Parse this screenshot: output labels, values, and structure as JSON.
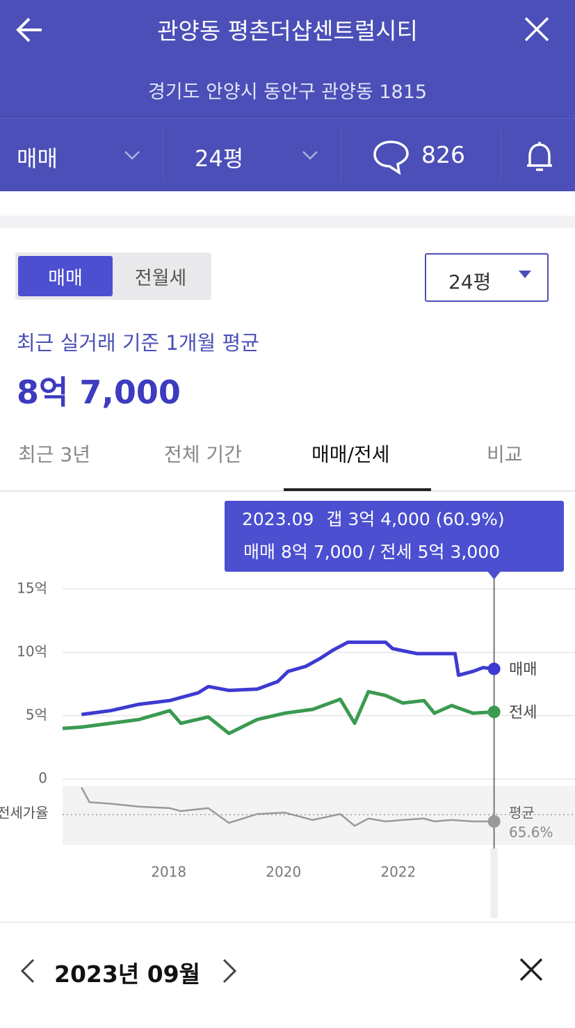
{
  "header": {
    "title": "관양동 평촌더샵센트럴시티",
    "address": "경기도 안양시 동안구 관양동 1815"
  },
  "nav": {
    "deal_type": "매매",
    "size": "24평",
    "comments": "826"
  },
  "summary": {
    "toggle": [
      "매매",
      "전월세"
    ],
    "size_select": "24평",
    "caption": "최근 실거래 기준 1개월 평균",
    "price": "8억 7,000"
  },
  "tabs": [
    "최근 3년",
    "전체 기간",
    "매매/전세",
    "비교"
  ],
  "tooltip": {
    "date": "2023.09",
    "line1": "갭 3억 4,000 (60.9%)",
    "line2": "매매 8억 7,000 / 전세 5억 3,000"
  },
  "chart_data": {
    "type": "line",
    "xlim": [
      2016.15,
      2025.08
    ],
    "xticks": [
      2018,
      2020,
      2022
    ],
    "ylim": [
      0,
      15
    ],
    "yticks": [
      {
        "value": 15,
        "label": "15억"
      },
      {
        "value": 10,
        "label": "10억"
      },
      {
        "value": 5,
        "label": "5억"
      },
      0
    ],
    "grid": true,
    "cursor_x": 2023.67,
    "series": [
      {
        "name": "매매",
        "color": "#3d3bd1",
        "x": [
          2016.48,
          2016.99,
          2017.48,
          2018.02,
          2018.51,
          2018.69,
          2019.05,
          2019.54,
          2019.9,
          2020.08,
          2020.39,
          2020.63,
          2020.87,
          2021.12,
          2021.78,
          2021.9,
          2022.33,
          2022.99,
          2023.05,
          2023.3,
          2023.48,
          2023.67
        ],
        "values": [
          5.1,
          5.4,
          5.9,
          6.2,
          6.8,
          7.3,
          7.0,
          7.1,
          7.7,
          8.5,
          8.9,
          9.5,
          10.2,
          10.8,
          10.8,
          10.3,
          9.9,
          9.9,
          8.2,
          8.5,
          8.8,
          8.7
        ]
      },
      {
        "name": "전세",
        "color": "#3a9a50",
        "x": [
          2016.15,
          2016.48,
          2016.99,
          2017.48,
          2018.02,
          2018.21,
          2018.69,
          2019.05,
          2019.54,
          2020.02,
          2020.51,
          2020.99,
          2021.24,
          2021.48,
          2021.78,
          2022.08,
          2022.45,
          2022.63,
          2022.93,
          2023.3,
          2023.67
        ],
        "values": [
          4.0,
          4.1,
          4.4,
          4.7,
          5.4,
          4.4,
          4.9,
          3.6,
          4.7,
          5.2,
          5.5,
          6.3,
          4.4,
          6.9,
          6.6,
          6.0,
          6.2,
          5.2,
          5.8,
          5.2,
          5.3
        ]
      }
    ],
    "ratio": {
      "name": "전세가율",
      "color": "#999999",
      "ylim": [
        45,
        85
      ],
      "average_label": "평균",
      "average": {
        "value": 65.6,
        "label": "65.6%"
      },
      "x": [
        2016.48,
        2016.62,
        2016.99,
        2017.48,
        2018.02,
        2018.21,
        2018.69,
        2019.05,
        2019.54,
        2020.02,
        2020.51,
        2020.99,
        2021.24,
        2021.48,
        2021.78,
        2022.08,
        2022.45,
        2022.63,
        2022.93,
        2023.3,
        2023.67
      ],
      "values": [
        84,
        74,
        73,
        71,
        70,
        68,
        70,
        60,
        66,
        67,
        62,
        66,
        58,
        63,
        61,
        62,
        63,
        61,
        62,
        61,
        61
      ]
    }
  },
  "detail": {
    "month": "2023년 09월"
  }
}
